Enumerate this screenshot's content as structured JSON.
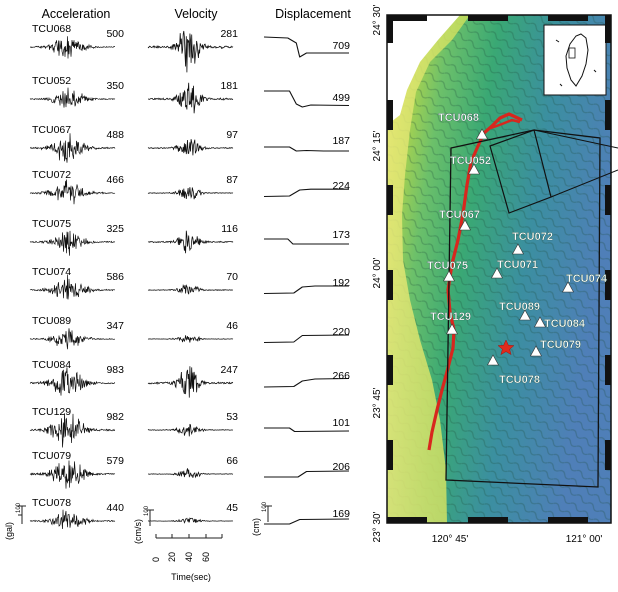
{
  "columns": {
    "acceleration": "Acceleration",
    "velocity": "Velocity",
    "displacement": "Displacement"
  },
  "stations": [
    {
      "name": "TCU068",
      "acc": "500",
      "vel": "281",
      "disp": "709"
    },
    {
      "name": "TCU052",
      "acc": "350",
      "vel": "181",
      "disp": "499"
    },
    {
      "name": "TCU067",
      "acc": "488",
      "vel": "97",
      "disp": "187"
    },
    {
      "name": "TCU072",
      "acc": "466",
      "vel": "87",
      "disp": "224"
    },
    {
      "name": "TCU075",
      "acc": "325",
      "vel": "116",
      "disp": "173"
    },
    {
      "name": "TCU074",
      "acc": "586",
      "vel": "70",
      "disp": "192"
    },
    {
      "name": "TCU089",
      "acc": "347",
      "vel": "46",
      "disp": "220"
    },
    {
      "name": "TCU084",
      "acc": "983",
      "vel": "247",
      "disp": "266"
    },
    {
      "name": "TCU129",
      "acc": "982",
      "vel": "53",
      "disp": "101"
    },
    {
      "name": "TCU079",
      "acc": "579",
      "vel": "66",
      "disp": "206"
    },
    {
      "name": "TCU078",
      "acc": "440",
      "vel": "45",
      "disp": "169"
    }
  ],
  "units": {
    "acc": "(gal)",
    "vel": "(cm/s)",
    "disp": "(cm)"
  },
  "scale_tick": "100",
  "time_axis": {
    "ticks": [
      "0",
      "20",
      "40",
      "60"
    ],
    "label": "Time(sec)"
  },
  "map": {
    "lat_labels": [
      "24° 30'",
      "24° 15'",
      "24° 00'",
      "23° 45'",
      "23° 30'"
    ],
    "lon_labels": [
      "120° 45'",
      "121° 00'"
    ],
    "station_markers": [
      {
        "name": "TCU068"
      },
      {
        "name": "TCU052"
      },
      {
        "name": "TCU067"
      },
      {
        "name": "TCU072"
      },
      {
        "name": "TCU075"
      },
      {
        "name": "TCU071"
      },
      {
        "name": "TCU074"
      },
      {
        "name": "TCU089"
      },
      {
        "name": "TCU129"
      },
      {
        "name": "TCU084"
      },
      {
        "name": "TCU079"
      },
      {
        "name": "TCU078"
      }
    ]
  }
}
